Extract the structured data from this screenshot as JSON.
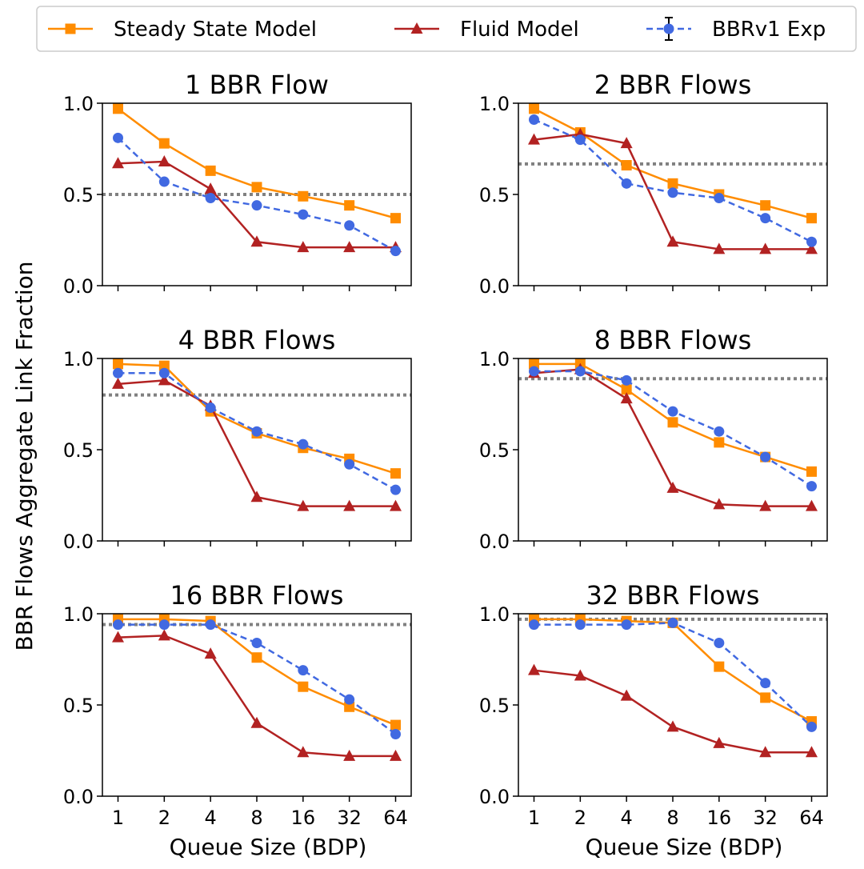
{
  "chart_data": {
    "type": "line",
    "ylabel": "BBR Flows Aggregate Link Fraction",
    "xlabel": "Queue Size (BDP)",
    "categories": [
      "1",
      "2",
      "4",
      "8",
      "16",
      "32",
      "64"
    ],
    "ylim": [
      0,
      1
    ],
    "yticks": [
      "0.0",
      "0.5",
      "1.0"
    ],
    "legend": {
      "placement": "top",
      "entries": [
        {
          "name": "Steady State Model",
          "color": "#ff8c00",
          "marker": "square",
          "dash": "solid"
        },
        {
          "name": "Fluid Model",
          "color": "#b22222",
          "marker": "triangle",
          "dash": "solid"
        },
        {
          "name": "BBRv1 Exp",
          "color": "#4169e1",
          "marker": "circle",
          "dash": "dashed",
          "errorbar": true
        }
      ]
    },
    "reference_line_color": "#808080",
    "panels": [
      {
        "title": "1 BBR Flow",
        "reference_line": 0.5,
        "series": [
          {
            "name": "Steady State Model",
            "values": [
              0.97,
              0.78,
              0.63,
              0.54,
              0.49,
              0.44,
              0.37
            ]
          },
          {
            "name": "Fluid Model",
            "values": [
              0.67,
              0.68,
              0.53,
              0.24,
              0.21,
              0.21,
              0.21
            ]
          },
          {
            "name": "BBRv1 Exp",
            "values": [
              0.81,
              0.57,
              0.48,
              0.44,
              0.39,
              0.33,
              0.19
            ]
          }
        ]
      },
      {
        "title": "2 BBR Flows",
        "reference_line": 0.667,
        "series": [
          {
            "name": "Steady State Model",
            "values": [
              0.97,
              0.84,
              0.66,
              0.56,
              0.5,
              0.44,
              0.37
            ]
          },
          {
            "name": "Fluid Model",
            "values": [
              0.8,
              0.83,
              0.78,
              0.24,
              0.2,
              0.2,
              0.2
            ]
          },
          {
            "name": "BBRv1 Exp",
            "values": [
              0.91,
              0.8,
              0.56,
              0.51,
              0.48,
              0.37,
              0.24
            ]
          }
        ]
      },
      {
        "title": "4 BBR Flows",
        "reference_line": 0.8,
        "series": [
          {
            "name": "Steady State Model",
            "values": [
              0.97,
              0.96,
              0.71,
              0.59,
              0.51,
              0.45,
              0.37
            ]
          },
          {
            "name": "Fluid Model",
            "values": [
              0.86,
              0.88,
              0.74,
              0.24,
              0.19,
              0.19,
              0.19
            ]
          },
          {
            "name": "BBRv1 Exp",
            "values": [
              0.92,
              0.92,
              0.73,
              0.6,
              0.53,
              0.42,
              0.28
            ]
          }
        ]
      },
      {
        "title": "8 BBR Flows",
        "reference_line": 0.889,
        "series": [
          {
            "name": "Steady State Model",
            "values": [
              0.97,
              0.97,
              0.83,
              0.65,
              0.54,
              0.46,
              0.38
            ]
          },
          {
            "name": "Fluid Model",
            "values": [
              0.92,
              0.94,
              0.78,
              0.29,
              0.2,
              0.19,
              0.19
            ]
          },
          {
            "name": "BBRv1 Exp",
            "values": [
              0.93,
              0.93,
              0.88,
              0.71,
              0.6,
              0.46,
              0.3
            ]
          }
        ]
      },
      {
        "title": "16 BBR Flows",
        "reference_line": 0.941,
        "series": [
          {
            "name": "Steady State Model",
            "values": [
              0.97,
              0.97,
              0.96,
              0.76,
              0.6,
              0.49,
              0.39
            ]
          },
          {
            "name": "Fluid Model",
            "values": [
              0.87,
              0.88,
              0.78,
              0.4,
              0.24,
              0.22,
              0.22
            ]
          },
          {
            "name": "BBRv1 Exp",
            "values": [
              0.94,
              0.94,
              0.94,
              0.84,
              0.69,
              0.53,
              0.34
            ]
          }
        ]
      },
      {
        "title": "32 BBR Flows",
        "reference_line": 0.97,
        "series": [
          {
            "name": "Steady State Model",
            "values": [
              0.97,
              0.97,
              0.96,
              0.95,
              0.71,
              0.54,
              0.41
            ]
          },
          {
            "name": "Fluid Model",
            "values": [
              0.69,
              0.66,
              0.55,
              0.38,
              0.29,
              0.24,
              0.24
            ]
          },
          {
            "name": "BBRv1 Exp",
            "values": [
              0.94,
              0.94,
              0.94,
              0.95,
              0.84,
              0.62,
              0.38
            ]
          }
        ]
      }
    ]
  }
}
